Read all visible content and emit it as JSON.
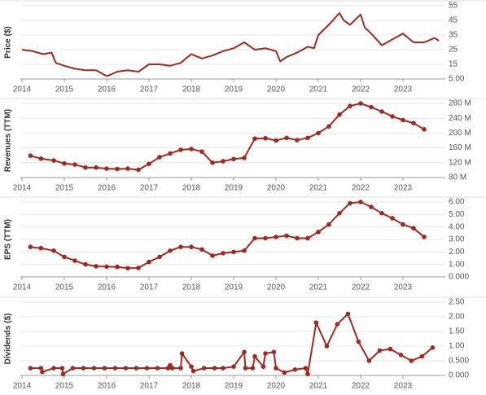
{
  "chart_data": [
    {
      "type": "line",
      "ylabel": "Price ($)",
      "color": "#a3291e",
      "markers": false,
      "grid": true,
      "xlim": [
        2014,
        2024
      ],
      "xticks": [
        2014,
        2015,
        2016,
        2017,
        2018,
        2019,
        2020,
        2021,
        2022,
        2023
      ],
      "ylim": [
        5,
        55
      ],
      "yticks": [
        {
          "value": 5,
          "label": "5.00"
        },
        15,
        25,
        35,
        45,
        55
      ],
      "x": [
        2014.0,
        2014.25,
        2014.5,
        2014.7,
        2014.8,
        2015.0,
        2015.25,
        2015.5,
        2015.75,
        2016.0,
        2016.1,
        2016.25,
        2016.5,
        2016.75,
        2017.0,
        2017.25,
        2017.5,
        2017.75,
        2018.0,
        2018.25,
        2018.5,
        2018.75,
        2019.0,
        2019.25,
        2019.5,
        2019.75,
        2020.0,
        2020.1,
        2020.25,
        2020.5,
        2020.75,
        2020.9,
        2021.0,
        2021.25,
        2021.5,
        2021.6,
        2021.75,
        2022.0,
        2022.1,
        2022.25,
        2022.5,
        2022.75,
        2023.0,
        2023.25,
        2023.5,
        2023.75,
        2023.85
      ],
      "values": [
        25,
        24,
        22,
        23,
        16,
        14,
        12,
        11,
        11,
        7,
        8,
        10,
        11,
        10,
        15,
        15,
        14,
        16,
        22,
        19,
        21,
        24,
        26,
        30,
        25,
        26,
        24,
        17,
        20,
        23,
        27,
        26,
        35,
        42,
        50,
        45,
        42,
        49,
        40,
        36,
        28,
        32,
        36,
        30,
        30,
        33,
        31
      ]
    },
    {
      "type": "line",
      "ylabel": "Revenues (TTM)",
      "color": "#a3291e",
      "markers": true,
      "grid": true,
      "xlim": [
        2014,
        2024
      ],
      "xticks": [
        2014,
        2015,
        2016,
        2017,
        2018,
        2019,
        2020,
        2021,
        2022,
        2023
      ],
      "ylim": [
        80,
        280
      ],
      "yticks": [
        {
          "value": 80,
          "label": "80 M"
        },
        {
          "value": 120,
          "label": "120 M"
        },
        {
          "value": 160,
          "label": "160 M"
        },
        {
          "value": 200,
          "label": "200 M"
        },
        {
          "value": 240,
          "label": "240 M"
        },
        {
          "value": 280,
          "label": "280 M"
        }
      ],
      "x": [
        2014.2,
        2014.45,
        2014.75,
        2015.0,
        2015.25,
        2015.5,
        2015.75,
        2016.0,
        2016.25,
        2016.5,
        2016.75,
        2017.0,
        2017.25,
        2017.5,
        2017.75,
        2018.0,
        2018.25,
        2018.5,
        2018.75,
        2019.0,
        2019.25,
        2019.5,
        2019.75,
        2020.0,
        2020.25,
        2020.5,
        2020.75,
        2021.0,
        2021.25,
        2021.5,
        2021.75,
        2022.0,
        2022.25,
        2022.5,
        2022.75,
        2023.0,
        2023.25,
        2023.5
      ],
      "values": [
        139,
        131,
        126,
        118,
        115,
        107,
        107,
        104,
        103,
        104,
        101,
        117,
        135,
        145,
        155,
        157,
        150,
        120,
        124,
        130,
        133,
        185,
        186,
        180,
        187,
        181,
        187,
        200,
        218,
        250,
        273,
        280,
        270,
        258,
        245,
        235,
        227,
        210
      ]
    },
    {
      "type": "line",
      "ylabel": "EPS (TTM)",
      "color": "#a3291e",
      "markers": true,
      "grid": true,
      "xlim": [
        2014,
        2024
      ],
      "xticks": [
        2014,
        2015,
        2016,
        2017,
        2018,
        2019,
        2020,
        2021,
        2022,
        2023
      ],
      "ylim": [
        0,
        6
      ],
      "yticks": [
        {
          "value": 0,
          "label": "0.000"
        },
        {
          "value": 1,
          "label": "1.00"
        },
        {
          "value": 2,
          "label": "2.00"
        },
        {
          "value": 3,
          "label": "3.00"
        },
        {
          "value": 4,
          "label": "4.00"
        },
        {
          "value": 5,
          "label": "5.00"
        },
        {
          "value": 6,
          "label": "6.00"
        }
      ],
      "x": [
        2014.2,
        2014.45,
        2014.75,
        2015.0,
        2015.25,
        2015.5,
        2015.75,
        2016.0,
        2016.25,
        2016.5,
        2016.75,
        2017.0,
        2017.25,
        2017.5,
        2017.75,
        2018.0,
        2018.25,
        2018.5,
        2018.75,
        2019.0,
        2019.25,
        2019.5,
        2019.75,
        2020.0,
        2020.25,
        2020.5,
        2020.75,
        2021.0,
        2021.25,
        2021.5,
        2021.75,
        2022.0,
        2022.25,
        2022.5,
        2022.75,
        2023.0,
        2023.25,
        2023.5
      ],
      "values": [
        2.4,
        2.3,
        2.1,
        1.6,
        1.3,
        1.0,
        0.85,
        0.82,
        0.8,
        0.7,
        0.72,
        1.2,
        1.6,
        2.1,
        2.4,
        2.4,
        2.2,
        1.7,
        1.9,
        2.0,
        2.1,
        3.1,
        3.1,
        3.2,
        3.3,
        3.1,
        3.1,
        3.6,
        4.2,
        5.1,
        5.9,
        6.0,
        5.6,
        5.1,
        4.7,
        4.2,
        3.9,
        3.2
      ]
    },
    {
      "type": "line",
      "ylabel": "Dividends ($)",
      "color": "#a3291e",
      "markers": true,
      "grid": true,
      "xlim": [
        2014,
        2024
      ],
      "xticks": [
        2014,
        2015,
        2016,
        2017,
        2018,
        2019,
        2020,
        2021,
        2022,
        2023
      ],
      "ylim": [
        0,
        2.5
      ],
      "yticks": [
        {
          "value": 0,
          "label": "0.000"
        },
        {
          "value": 0.5,
          "label": "0.500"
        },
        {
          "value": 1,
          "label": "1.00"
        },
        {
          "value": 1.5,
          "label": "1.50"
        },
        {
          "value": 2,
          "label": "2.00"
        },
        {
          "value": 2.5,
          "label": "2.50"
        }
      ],
      "x": [
        2014.2,
        2014.45,
        2014.48,
        2014.75,
        2014.95,
        2014.97,
        2015.2,
        2015.45,
        2015.7,
        2015.95,
        2016.2,
        2016.45,
        2016.7,
        2016.95,
        2017.2,
        2017.45,
        2017.5,
        2017.55,
        2017.75,
        2017.78,
        2018.0,
        2018.05,
        2018.3,
        2018.55,
        2018.75,
        2019.0,
        2019.25,
        2019.28,
        2019.45,
        2019.5,
        2019.7,
        2019.75,
        2019.95,
        2020.0,
        2020.2,
        2020.45,
        2020.7,
        2020.75,
        2020.95,
        2021.2,
        2021.45,
        2021.7,
        2021.95,
        2022.2,
        2022.45,
        2022.7,
        2022.95,
        2023.2,
        2023.45,
        2023.7
      ],
      "values": [
        0.25,
        0.25,
        0.12,
        0.25,
        0.25,
        0.05,
        0.25,
        0.25,
        0.25,
        0.25,
        0.25,
        0.25,
        0.25,
        0.25,
        0.25,
        0.25,
        0.35,
        0.25,
        0.25,
        0.75,
        0.3,
        0.15,
        0.25,
        0.25,
        0.25,
        0.3,
        0.8,
        0.25,
        0.25,
        0.65,
        0.3,
        0.75,
        0.8,
        0.25,
        0.1,
        0.2,
        0.25,
        0.05,
        1.8,
        1.0,
        1.75,
        2.1,
        1.15,
        0.5,
        0.85,
        0.9,
        0.7,
        0.5,
        0.65,
        0.95
      ]
    }
  ]
}
